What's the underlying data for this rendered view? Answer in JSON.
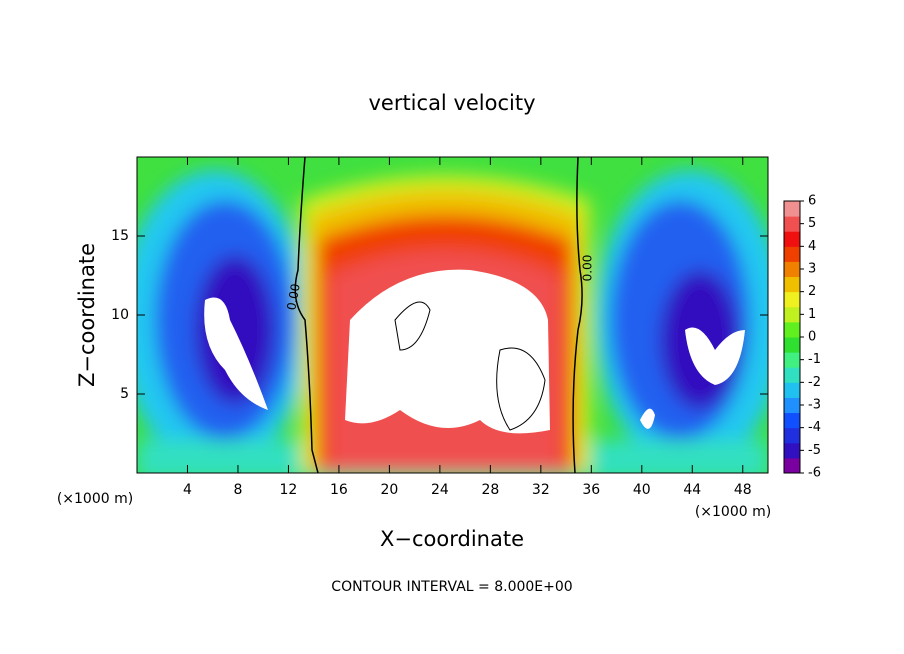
{
  "chart_data": {
    "type": "contour",
    "title": "vertical velocity",
    "x_label": "X−coordinate",
    "y_label": "Z−coordinate",
    "x_unit": "(×1000 m)",
    "y_unit": "(×1000 m)",
    "footer": "CONTOUR INTERVAL = 8.000E+00",
    "contour_labels": [
      "0.00",
      "0.00"
    ],
    "xlim": [
      0,
      50
    ],
    "xticks": [
      4,
      8,
      12,
      16,
      20,
      24,
      28,
      32,
      36,
      40,
      44,
      48
    ],
    "ylim": [
      0,
      20
    ],
    "yticks": [
      5,
      10,
      15
    ],
    "colorbar": {
      "lim": [
        -6,
        6
      ],
      "ticks": [
        -6,
        -5,
        -4,
        -3,
        -2,
        -1,
        0,
        1,
        2,
        3,
        4,
        5,
        6
      ],
      "colors": [
        "#7a00a0",
        "#3010c0",
        "#2030e0",
        "#1050ff",
        "#2090ff",
        "#20c0f0",
        "#30e0c0",
        "#40f080",
        "#30e030",
        "#60f020",
        "#c0f020",
        "#f0f020",
        "#f0c000",
        "#f08000",
        "#f04000",
        "#f01010",
        "#f05050",
        "#f09090"
      ]
    }
  }
}
